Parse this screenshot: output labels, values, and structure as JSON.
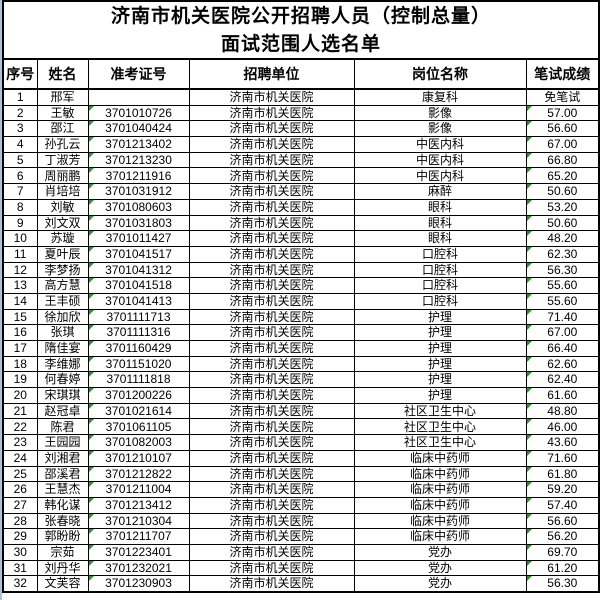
{
  "page": {
    "background": "#ffffff",
    "edge_line_color": "#aac1dc",
    "border_color": "#000000",
    "format_indicator_color": "#289628"
  },
  "title": {
    "line1": "济南市机关医院公开招聘人员（控制总量）",
    "line2": "面试范围人选名单"
  },
  "table": {
    "headers": [
      "序号",
      "姓名",
      "准考证号",
      "招聘单位",
      "岗位名称",
      "笔试成绩"
    ],
    "rows": [
      {
        "no": "1",
        "name": "邢军",
        "exam_id": "",
        "unit": "济南市机关医院",
        "position": "康复科",
        "score": "免笔试"
      },
      {
        "no": "2",
        "name": "王敏",
        "exam_id": "3701010726",
        "unit": "济南市机关医院",
        "position": "影像",
        "score": "57.00"
      },
      {
        "no": "3",
        "name": "邵江",
        "exam_id": "3701040424",
        "unit": "济南市机关医院",
        "position": "影像",
        "score": "56.60"
      },
      {
        "no": "4",
        "name": "孙孔云",
        "exam_id": "3701213402",
        "unit": "济南市机关医院",
        "position": "中医内科",
        "score": "67.00"
      },
      {
        "no": "5",
        "name": "丁淑芳",
        "exam_id": "3701213230",
        "unit": "济南市机关医院",
        "position": "中医内科",
        "score": "66.80"
      },
      {
        "no": "6",
        "name": "周丽鹏",
        "exam_id": "3701211916",
        "unit": "济南市机关医院",
        "position": "中医内科",
        "score": "65.20"
      },
      {
        "no": "7",
        "name": "肖培培",
        "exam_id": "3701031912",
        "unit": "济南市机关医院",
        "position": "麻醉",
        "score": "50.60"
      },
      {
        "no": "8",
        "name": "刘敏",
        "exam_id": "3701080603",
        "unit": "济南市机关医院",
        "position": "眼科",
        "score": "53.20"
      },
      {
        "no": "9",
        "name": "刘文双",
        "exam_id": "3701031803",
        "unit": "济南市机关医院",
        "position": "眼科",
        "score": "50.60"
      },
      {
        "no": "10",
        "name": "苏璇",
        "exam_id": "3701011427",
        "unit": "济南市机关医院",
        "position": "眼科",
        "score": "48.20"
      },
      {
        "no": "11",
        "name": "夏叶辰",
        "exam_id": "3701041517",
        "unit": "济南市机关医院",
        "position": "口腔科",
        "score": "62.30"
      },
      {
        "no": "12",
        "name": "李梦扬",
        "exam_id": "3701041312",
        "unit": "济南市机关医院",
        "position": "口腔科",
        "score": "56.30"
      },
      {
        "no": "13",
        "name": "高方慧",
        "exam_id": "3701041518",
        "unit": "济南市机关医院",
        "position": "口腔科",
        "score": "55.60"
      },
      {
        "no": "14",
        "name": "王丰硕",
        "exam_id": "3701041413",
        "unit": "济南市机关医院",
        "position": "口腔科",
        "score": "55.60"
      },
      {
        "no": "15",
        "name": "徐加欣",
        "exam_id": "3701111713",
        "unit": "济南市机关医院",
        "position": "护理",
        "score": "71.40"
      },
      {
        "no": "16",
        "name": "张琪",
        "exam_id": "3701111316",
        "unit": "济南市机关医院",
        "position": "护理",
        "score": "67.00"
      },
      {
        "no": "17",
        "name": "隋佳宴",
        "exam_id": "3701160429",
        "unit": "济南市机关医院",
        "position": "护理",
        "score": "66.40"
      },
      {
        "no": "18",
        "name": "李维娜",
        "exam_id": "3701151020",
        "unit": "济南市机关医院",
        "position": "护理",
        "score": "62.60"
      },
      {
        "no": "19",
        "name": "何春婷",
        "exam_id": "3701111818",
        "unit": "济南市机关医院",
        "position": "护理",
        "score": "62.40"
      },
      {
        "no": "20",
        "name": "宋琪琪",
        "exam_id": "3701200226",
        "unit": "济南市机关医院",
        "position": "护理",
        "score": "61.60"
      },
      {
        "no": "21",
        "name": "赵冠卓",
        "exam_id": "3701021614",
        "unit": "济南市机关医院",
        "position": "社区卫生中心",
        "score": "48.80"
      },
      {
        "no": "22",
        "name": "陈君",
        "exam_id": "3701061105",
        "unit": "济南市机关医院",
        "position": "社区卫生中心",
        "score": "46.00"
      },
      {
        "no": "23",
        "name": "王园园",
        "exam_id": "3701082003",
        "unit": "济南市机关医院",
        "position": "社区卫生中心",
        "score": "43.60"
      },
      {
        "no": "24",
        "name": "刘湘君",
        "exam_id": "3701210107",
        "unit": "济南市机关医院",
        "position": "临床中药师",
        "score": "71.60"
      },
      {
        "no": "25",
        "name": "邵溪君",
        "exam_id": "3701212822",
        "unit": "济南市机关医院",
        "position": "临床中药师",
        "score": "61.80"
      },
      {
        "no": "26",
        "name": "王慧杰",
        "exam_id": "3701211004",
        "unit": "济南市机关医院",
        "position": "临床中药师",
        "score": "59.20"
      },
      {
        "no": "27",
        "name": "韩化谋",
        "exam_id": "3701213412",
        "unit": "济南市机关医院",
        "position": "临床中药师",
        "score": "57.40"
      },
      {
        "no": "28",
        "name": "张春晓",
        "exam_id": "3701210304",
        "unit": "济南市机关医院",
        "position": "临床中药师",
        "score": "56.60"
      },
      {
        "no": "29",
        "name": "郭盼盼",
        "exam_id": "3701211707",
        "unit": "济南市机关医院",
        "position": "临床中药师",
        "score": "56.20"
      },
      {
        "no": "30",
        "name": "宗茹",
        "exam_id": "3701223401",
        "unit": "济南市机关医院",
        "position": "党办",
        "score": "69.70"
      },
      {
        "no": "31",
        "name": "刘丹华",
        "exam_id": "3701232021",
        "unit": "济南市机关医院",
        "position": "党办",
        "score": "61.20"
      },
      {
        "no": "32",
        "name": "文芙容",
        "exam_id": "3701230903",
        "unit": "济南市机关医院",
        "position": "党办",
        "score": "56.30"
      }
    ]
  }
}
